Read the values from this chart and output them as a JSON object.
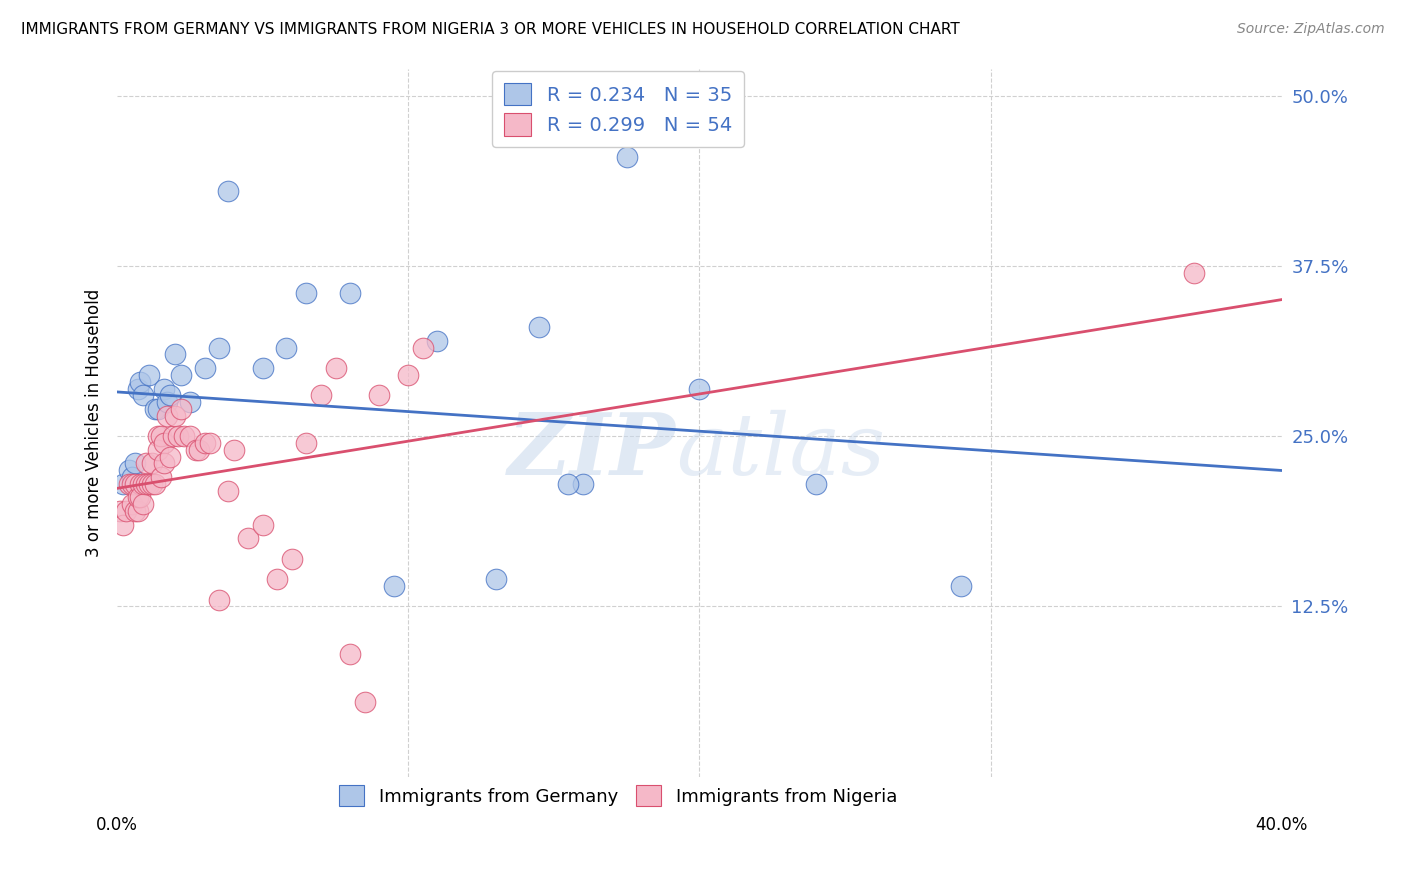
{
  "title": "IMMIGRANTS FROM GERMANY VS IMMIGRANTS FROM NIGERIA 3 OR MORE VEHICLES IN HOUSEHOLD CORRELATION CHART",
  "source": "Source: ZipAtlas.com",
  "ylabel": "3 or more Vehicles in Household",
  "ytick_labels": [
    "12.5%",
    "25.0%",
    "37.5%",
    "50.0%"
  ],
  "ytick_positions": [
    0.125,
    0.25,
    0.375,
    0.5
  ],
  "xlim": [
    0.0,
    0.4
  ],
  "ylim": [
    0.0,
    0.52
  ],
  "germany_R": 0.234,
  "germany_N": 35,
  "nigeria_R": 0.299,
  "nigeria_N": 54,
  "germany_color": "#aec6e8",
  "nigeria_color": "#f5b8c8",
  "germany_line_color": "#4472c4",
  "nigeria_line_color": "#d94f6e",
  "legend_text_color": "#4472c4",
  "germany_points_x": [
    0.002,
    0.004,
    0.005,
    0.006,
    0.006,
    0.007,
    0.008,
    0.009,
    0.01,
    0.011,
    0.013,
    0.014,
    0.016,
    0.017,
    0.018,
    0.02,
    0.022,
    0.025,
    0.03,
    0.035,
    0.038,
    0.05,
    0.058,
    0.065,
    0.08,
    0.095,
    0.11,
    0.13,
    0.145,
    0.16,
    0.175,
    0.2,
    0.24,
    0.29,
    0.155
  ],
  "germany_points_y": [
    0.215,
    0.225,
    0.22,
    0.215,
    0.23,
    0.285,
    0.29,
    0.28,
    0.215,
    0.295,
    0.27,
    0.27,
    0.285,
    0.275,
    0.28,
    0.31,
    0.295,
    0.275,
    0.3,
    0.315,
    0.43,
    0.3,
    0.315,
    0.355,
    0.355,
    0.14,
    0.32,
    0.145,
    0.33,
    0.215,
    0.455,
    0.285,
    0.215,
    0.14,
    0.215
  ],
  "nigeria_points_x": [
    0.001,
    0.002,
    0.003,
    0.004,
    0.005,
    0.005,
    0.006,
    0.006,
    0.007,
    0.007,
    0.008,
    0.008,
    0.009,
    0.009,
    0.01,
    0.01,
    0.011,
    0.012,
    0.012,
    0.013,
    0.014,
    0.014,
    0.015,
    0.015,
    0.016,
    0.016,
    0.017,
    0.018,
    0.019,
    0.02,
    0.021,
    0.022,
    0.023,
    0.025,
    0.027,
    0.028,
    0.03,
    0.032,
    0.035,
    0.038,
    0.04,
    0.045,
    0.05,
    0.055,
    0.06,
    0.065,
    0.07,
    0.075,
    0.08,
    0.085,
    0.09,
    0.1,
    0.105,
    0.37
  ],
  "nigeria_points_y": [
    0.195,
    0.185,
    0.195,
    0.215,
    0.2,
    0.215,
    0.195,
    0.215,
    0.195,
    0.205,
    0.215,
    0.205,
    0.215,
    0.2,
    0.23,
    0.215,
    0.215,
    0.23,
    0.215,
    0.215,
    0.25,
    0.24,
    0.22,
    0.25,
    0.245,
    0.23,
    0.265,
    0.235,
    0.25,
    0.265,
    0.25,
    0.27,
    0.25,
    0.25,
    0.24,
    0.24,
    0.245,
    0.245,
    0.13,
    0.21,
    0.24,
    0.175,
    0.185,
    0.145,
    0.16,
    0.245,
    0.28,
    0.3,
    0.09,
    0.055,
    0.28,
    0.295,
    0.315,
    0.37
  ],
  "watermark_zip": "ZIP",
  "watermark_atlas": "atlas",
  "background_color": "#ffffff",
  "grid_color": "#d0d0d0"
}
